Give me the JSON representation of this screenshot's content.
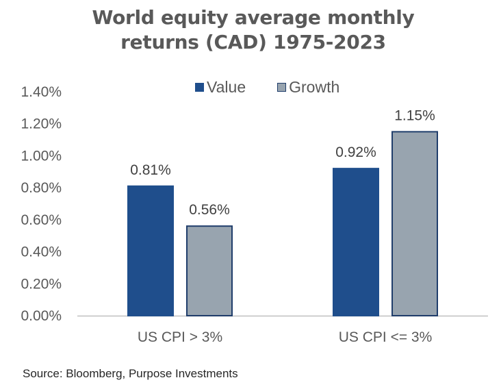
{
  "chart_data": {
    "type": "bar",
    "title_lines": [
      "World equity average monthly",
      "returns (CAD) 1975-2023"
    ],
    "categories": [
      "US CPI > 3%",
      "US CPI <= 3%"
    ],
    "series": [
      {
        "name": "Value",
        "values": [
          0.81,
          0.92
        ],
        "labels": [
          "0.81%",
          "0.92%"
        ],
        "color": "#1f4e8c",
        "border": "#1f4e8c"
      },
      {
        "name": "Growth",
        "values": [
          0.56,
          1.15
        ],
        "labels": [
          "0.56%",
          "1.15%"
        ],
        "color": "#98a4af",
        "border": "#1f3d6b"
      }
    ],
    "yticks": [
      "0.00%",
      "0.20%",
      "0.40%",
      "0.60%",
      "0.80%",
      "1.00%",
      "1.20%",
      "1.40%"
    ],
    "ytick_values": [
      0,
      0.2,
      0.4,
      0.6,
      0.8,
      1.0,
      1.2,
      1.4
    ],
    "ylim": [
      0,
      1.4
    ],
    "grid": false,
    "legend_position": "top"
  },
  "source": "Source: Bloomberg, Purpose Investments"
}
